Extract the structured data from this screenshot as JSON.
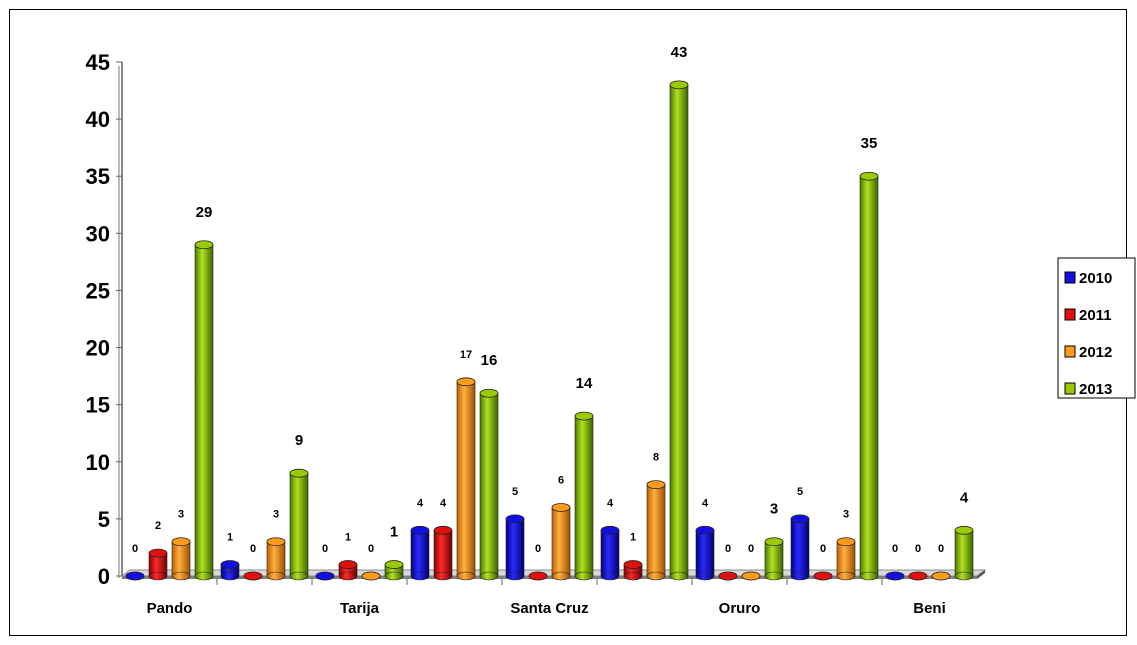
{
  "chart_data": {
    "type": "bar",
    "title": "",
    "xlabel": "",
    "ylabel": "",
    "ylim": [
      0,
      45
    ],
    "yticks": [
      "0",
      "5",
      "10",
      "15",
      "20",
      "25",
      "30",
      "35",
      "40",
      "45"
    ],
    "categories": [
      "Pando",
      "",
      "Tarija",
      "",
      "Santa Cruz",
      "",
      "Oruro",
      "",
      "Beni"
    ],
    "series": [
      {
        "name": "2010",
        "color": "#1010e0",
        "values": [
          0,
          1,
          0,
          4,
          5,
          4,
          4,
          5,
          0
        ]
      },
      {
        "name": "2011",
        "color": "#e01010",
        "values": [
          2,
          0,
          1,
          4,
          0,
          1,
          0,
          0,
          0
        ]
      },
      {
        "name": "2012",
        "color": "#ff9a1a",
        "values": [
          3,
          3,
          0,
          17,
          6,
          8,
          0,
          3,
          0
        ]
      },
      {
        "name": "2013",
        "color": "#99cc00",
        "values": [
          29,
          9,
          1,
          16,
          14,
          43,
          3,
          35,
          4
        ]
      }
    ],
    "legend_position": "right",
    "grid": false
  }
}
